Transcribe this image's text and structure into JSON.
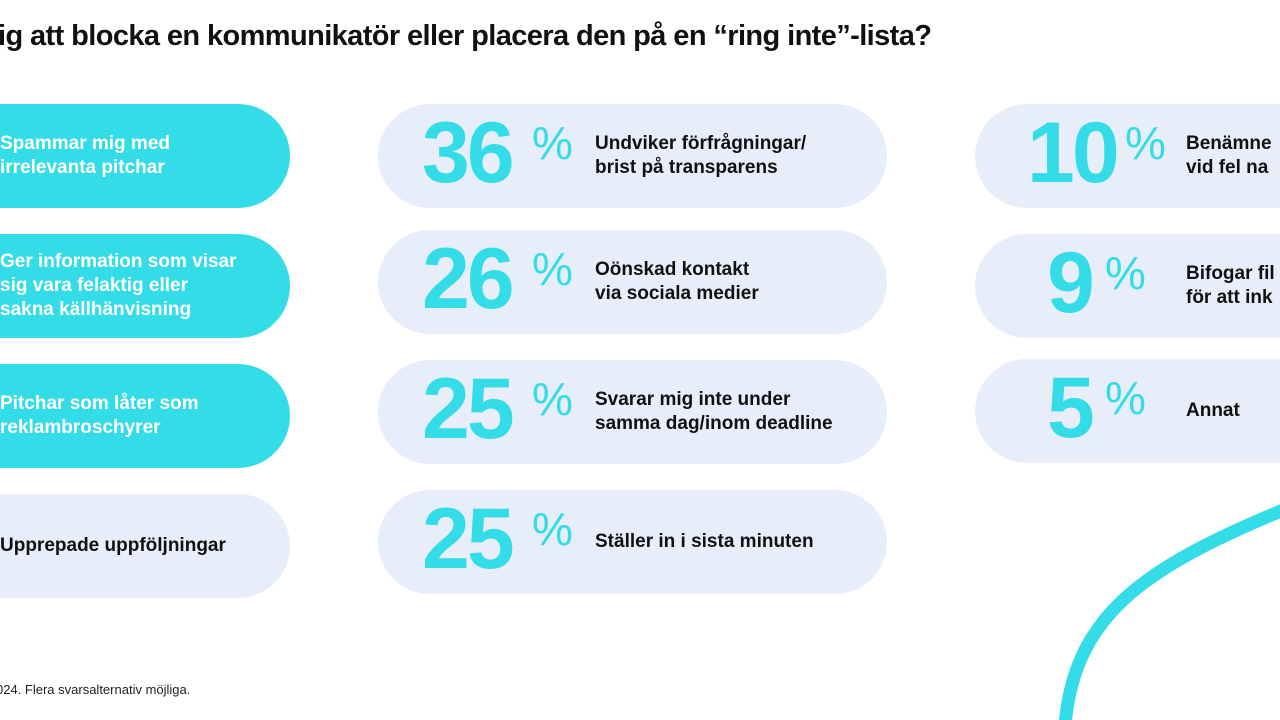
{
  "title": "ig att blocka en kommunikatör eller placera den på en “ring inte”-lista?",
  "left_items": [
    {
      "label": "Spammar mig med\nirrelevanta pitchar"
    },
    {
      "label": "Ger information som visar\nsig vara felaktig eller\nsakna källhänvisning"
    },
    {
      "label": "Pitchar som låter som\nreklambroschyrer"
    },
    {
      "label": "Upprepade uppföljningar"
    }
  ],
  "mid_items": [
    {
      "value": "36",
      "unit": "%",
      "label": "Undviker förfrågningar/\nbrist på transparens"
    },
    {
      "value": "26",
      "unit": "%",
      "label": "Oönskad kontakt\nvia sociala medier"
    },
    {
      "value": "25",
      "unit": "%",
      "label": "Svarar mig inte under\nsamma dag/inom deadline"
    },
    {
      "value": "25",
      "unit": "%",
      "label": "Ställer in i sista minuten"
    }
  ],
  "right_items": [
    {
      "value": "10",
      "unit": "%",
      "label": "Benämne\nvid fel na"
    },
    {
      "value": "9",
      "unit": "%",
      "label": "Bifogar fil\nför att ink"
    },
    {
      "value": "5",
      "unit": "%",
      "label": "Annat"
    }
  ],
  "footnote": "024. Flera svarsalternativ möjliga.",
  "colors": {
    "accent": "#33dce6",
    "pill": "#e8eef9"
  }
}
